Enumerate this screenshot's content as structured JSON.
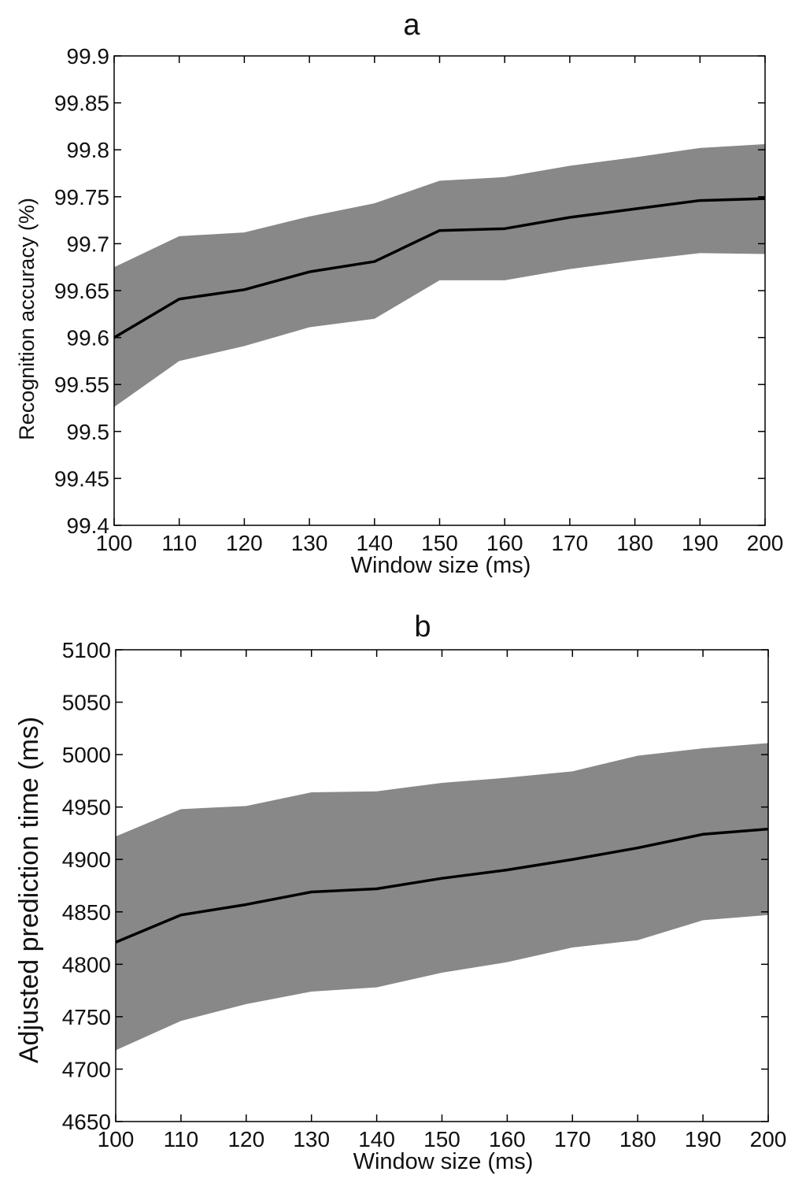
{
  "chart_data": [
    {
      "type": "area",
      "title": "a",
      "xlabel": "Window size (ms)",
      "ylabel": "Recognition accuracy (%)",
      "xlim": [
        100,
        200
      ],
      "ylim": [
        99.4,
        99.9
      ],
      "x": [
        100,
        110,
        120,
        130,
        140,
        150,
        160,
        170,
        180,
        190,
        200
      ],
      "x_ticks": [
        "100",
        "110",
        "120",
        "130",
        "140",
        "150",
        "160",
        "170",
        "180",
        "190",
        "200"
      ],
      "y_ticks": [
        "99.4",
        "99.45",
        "99.5",
        "99.55",
        "99.6",
        "99.65",
        "99.7",
        "99.75",
        "99.8",
        "99.85",
        "99.9"
      ],
      "series": [
        {
          "values": [
            99.6,
            99.641,
            99.651,
            99.67,
            99.681,
            99.714,
            99.716,
            99.728,
            99.737,
            99.746,
            99.748
          ],
          "band_upper": [
            99.675,
            99.708,
            99.712,
            99.729,
            99.743,
            99.767,
            99.771,
            99.783,
            99.792,
            99.802,
            99.806
          ],
          "band_lower": [
            99.526,
            99.575,
            99.591,
            99.611,
            99.62,
            99.661,
            99.661,
            99.673,
            99.682,
            99.69,
            99.689
          ]
        }
      ],
      "grid": false,
      "line_color": "#000000",
      "band_color": "#888888"
    },
    {
      "type": "area",
      "title": "b",
      "xlabel": "Window size (ms)",
      "ylabel": "Adjusted prediction time (ms)",
      "xlim": [
        100,
        200
      ],
      "ylim": [
        4650,
        5100
      ],
      "x": [
        100,
        110,
        120,
        130,
        140,
        150,
        160,
        170,
        180,
        190,
        200
      ],
      "x_ticks": [
        "100",
        "110",
        "120",
        "130",
        "140",
        "150",
        "160",
        "170",
        "180",
        "190",
        "200"
      ],
      "y_ticks": [
        "4650",
        "4700",
        "4750",
        "4800",
        "4850",
        "4900",
        "4950",
        "5000",
        "5050",
        "5100"
      ],
      "series": [
        {
          "values": [
            4821,
            4847,
            4857,
            4869,
            4872,
            4882,
            4890,
            4900,
            4911,
            4924,
            4929
          ],
          "band_upper": [
            4922,
            4948,
            4951,
            4964,
            4965,
            4973,
            4978,
            4984,
            4999,
            5006,
            5011
          ],
          "band_lower": [
            4718,
            4746,
            4762,
            4774,
            4778,
            4792,
            4802,
            4816,
            4823,
            4842,
            4847
          ]
        }
      ],
      "grid": false,
      "line_color": "#000000",
      "band_color": "#888888"
    }
  ]
}
